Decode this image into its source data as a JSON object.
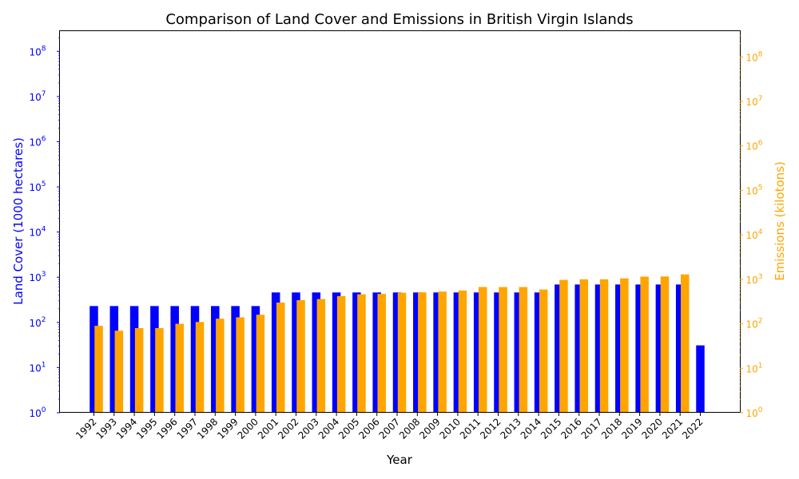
{
  "chart_data": {
    "type": "bar",
    "title": "Comparison of Land Cover and Emissions in British Virgin Islands",
    "xlabel": "Year",
    "ylabel_left": "Land Cover (1000 hectares)",
    "ylabel_right": "Emissions (kilotons)",
    "yscale": "log",
    "ylim_left": [
      1,
      280000000
    ],
    "ylim_right": [
      1,
      380000000
    ],
    "y_tick_exponents": [
      0,
      1,
      2,
      3,
      4,
      5,
      6,
      7,
      8
    ],
    "grid": false,
    "categories": [
      "1992",
      "1993",
      "1994",
      "1995",
      "1996",
      "1997",
      "1998",
      "1999",
      "2000",
      "2001",
      "2002",
      "2003",
      "2004",
      "2005",
      "2006",
      "2007",
      "2008",
      "2009",
      "2010",
      "2011",
      "2012",
      "2013",
      "2014",
      "2015",
      "2016",
      "2017",
      "2018",
      "2019",
      "2020",
      "2021",
      "2022"
    ],
    "series": [
      {
        "name": "",
        "axis": "left",
        "color": "#0000ff",
        "values": [
          230,
          230,
          230,
          230,
          230,
          230,
          230,
          230,
          230,
          460,
          460,
          460,
          460,
          460,
          460,
          460,
          460,
          460,
          460,
          460,
          460,
          460,
          460,
          690,
          690,
          690,
          690,
          690,
          690,
          690,
          31
        ]
      },
      {
        "name": "",
        "axis": "right",
        "color": "#ffa500",
        "values": [
          90,
          70,
          80,
          80,
          100,
          110,
          130,
          140,
          160,
          300,
          340,
          360,
          420,
          460,
          470,
          500,
          510,
          530,
          560,
          670,
          670,
          670,
          590,
          970,
          1000,
          1000,
          1050,
          1150,
          1160,
          1290,
          null
        ]
      }
    ]
  }
}
